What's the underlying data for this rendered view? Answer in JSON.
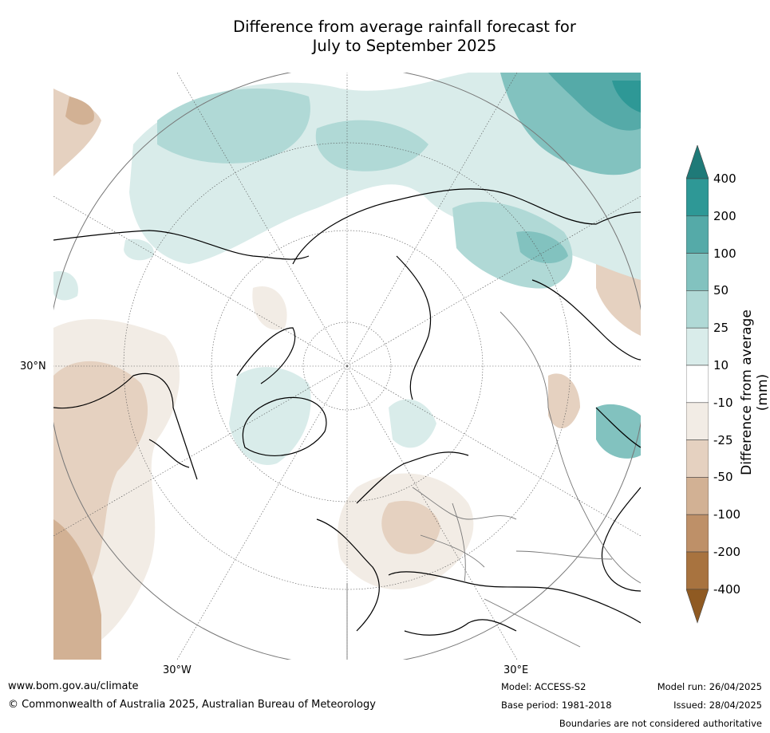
{
  "title_line1": "Difference from average rainfall forecast for",
  "title_line2": "July to September 2025",
  "map": {
    "lat_label": "30°N",
    "lon_label_west": "30°W",
    "lon_label_east": "30°E"
  },
  "colorbar": {
    "title": "Difference from average (mm)",
    "levels": [
      "400",
      "200",
      "100",
      "50",
      "25",
      "10",
      "-10",
      "-25",
      "-50",
      "-100",
      "-200",
      "-400"
    ],
    "colors": [
      "#1f7a78",
      "#2e9896",
      "#55aaa8",
      "#82c2bf",
      "#b0d9d6",
      "#d9ecea",
      "#ffffff",
      "#f2ece5",
      "#e5d1c0",
      "#d2b194",
      "#be9068",
      "#a8733f",
      "#8f5a22"
    ]
  },
  "footer": {
    "url": "www.bom.gov.au/climate",
    "copyright": "© Commonwealth of Australia 2025, Australian Bureau of Meteorology",
    "model": "Model: ACCESS-S2",
    "base_period": "Base period: 1981-2018",
    "model_run": "Model run: 26/04/2025",
    "issued": "Issued: 28/04/2025",
    "disclaimer": "Boundaries are not considered authoritative"
  }
}
